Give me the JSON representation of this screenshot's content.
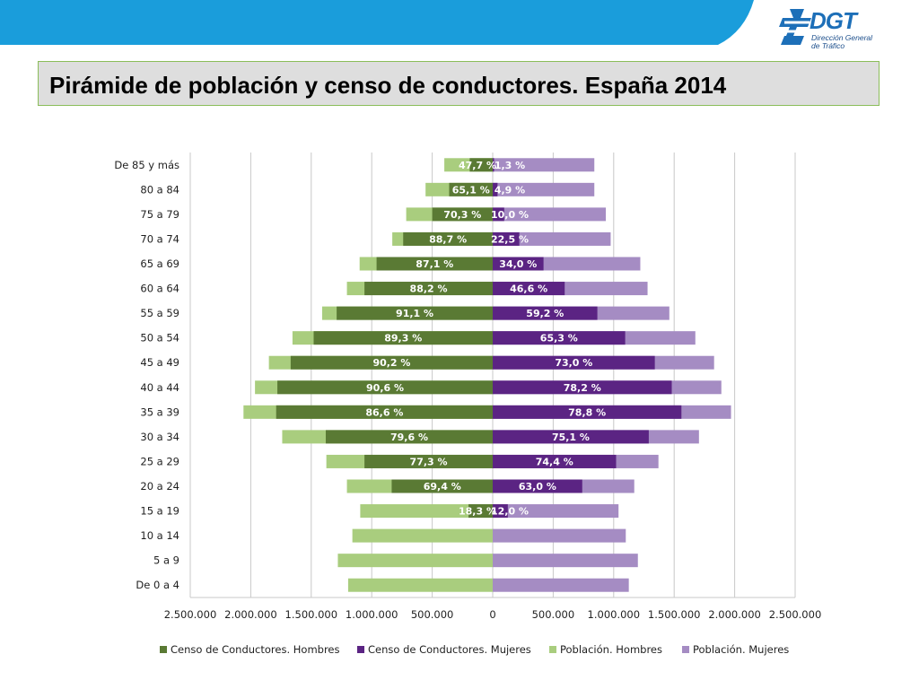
{
  "header": {
    "title": "Pirámide de población y censo de conductores. España 2014",
    "logo_text": "DGT",
    "logo_subtitle_1": "Dirección General",
    "logo_subtitle_2": "de Tráfico"
  },
  "colors": {
    "band": "#1a9ddb",
    "censo_hombres": "#5a7a34",
    "censo_mujeres": "#5b2483",
    "poblacion_hombres": "#a9cd7e",
    "poblacion_mujeres": "#a58cc3"
  },
  "chart_data": {
    "type": "bar",
    "orientation": "horizontal-diverging",
    "title": "",
    "categories": [
      "De 85 y más",
      "80 a 84",
      "75 a 79",
      "70 a 74",
      "65 a 69",
      "60 a 64",
      "55 a 59",
      "50 a 54",
      "45 a 49",
      "40 a 44",
      "35 a 39",
      "30 a 34",
      "25 a 29",
      "20 a 24",
      "15 a 19",
      "10 a 14",
      "5 a 9",
      "De 0 a 4"
    ],
    "series": [
      {
        "name": "Censo de Conductores. Hombres",
        "side": "left",
        "values": [
          190000,
          360000,
          500000,
          740000,
          960000,
          1060000,
          1290000,
          1480000,
          1670000,
          1780000,
          1790000,
          1380000,
          1060000,
          835000,
          200000,
          0,
          0,
          0
        ],
        "labels": [
          "47,7 %",
          "65,1 %",
          "70,3 %",
          "88,7 %",
          "87,1 %",
          "88,2 %",
          "91,1 %",
          "89,3 %",
          "90,2 %",
          "90,6 %",
          "86,6 %",
          "79,6 %",
          "77,3 %",
          "69,4 %",
          "18,3 %",
          "",
          "",
          ""
        ]
      },
      {
        "name": "Censo de Conductores. Mujeres",
        "side": "right",
        "values": [
          11000,
          40000,
          95000,
          220000,
          420000,
          595000,
          865000,
          1095000,
          1340000,
          1480000,
          1560000,
          1290000,
          1020000,
          740000,
          125000,
          0,
          0,
          0
        ],
        "labels": [
          "1,3 %",
          "4,9 %",
          "10,0 %",
          "22,5 %",
          "34,0 %",
          "46,6 %",
          "59,2 %",
          "65,3 %",
          "73,0 %",
          "78,2 %",
          "78,8 %",
          "75,1 %",
          "74,4 %",
          "63,0 %",
          "12,0 %",
          "",
          "",
          ""
        ]
      },
      {
        "name": "Población. Hombres",
        "side": "left",
        "values": [
          400000,
          555000,
          715000,
          830000,
          1100000,
          1205000,
          1410000,
          1655000,
          1850000,
          1965000,
          2060000,
          1740000,
          1375000,
          1205000,
          1095000,
          1160000,
          1280000,
          1195000
        ]
      },
      {
        "name": "Población. Mujeres",
        "side": "right",
        "values": [
          840000,
          840000,
          935000,
          975000,
          1220000,
          1280000,
          1460000,
          1675000,
          1830000,
          1890000,
          1970000,
          1705000,
          1370000,
          1170000,
          1040000,
          1100000,
          1200000,
          1125000
        ]
      }
    ],
    "x_ticks": [
      -2500000,
      -2000000,
      -1500000,
      -1000000,
      -500000,
      0,
      500000,
      1000000,
      1500000,
      2000000,
      2500000
    ],
    "x_tick_labels": [
      "2.500.000",
      "2.000.000",
      "1.500.000",
      "1.000.000",
      "500.000",
      "0",
      "500.000",
      "1.000.000",
      "1.500.000",
      "2.000.000",
      "2.500.000"
    ],
    "xlim": [
      -2500000,
      2500000
    ],
    "xlabel": "",
    "ylabel": "",
    "grid": true,
    "legend_position": "bottom"
  }
}
